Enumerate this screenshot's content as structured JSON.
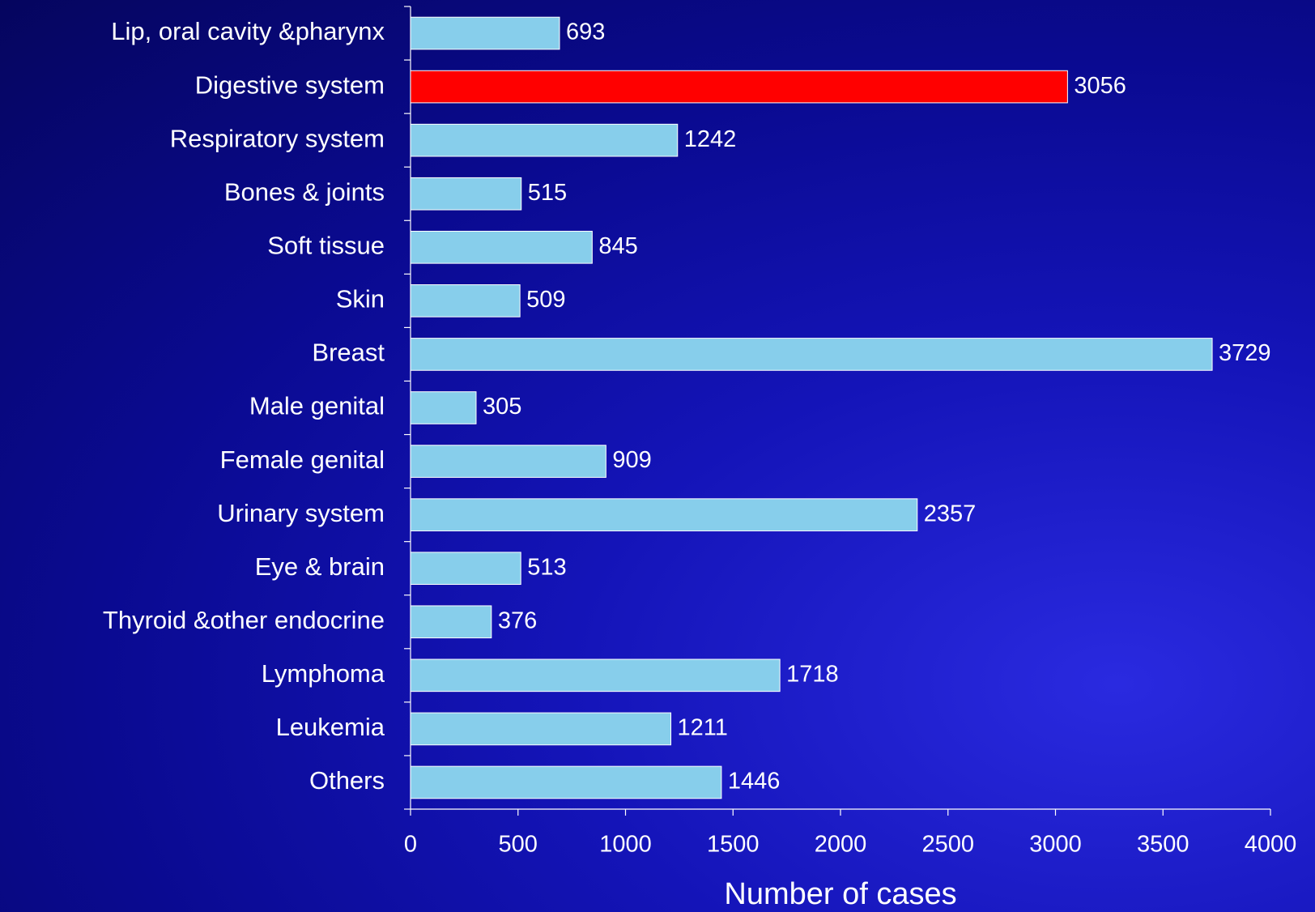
{
  "chart_data": {
    "type": "barh",
    "categories": [
      "Lip, oral cavity &pharynx",
      "Digestive system",
      "Respiratory system",
      "Bones & joints",
      "Soft tissue",
      "Skin",
      "Breast",
      "Male genital",
      "Female genital",
      "Urinary system",
      "Eye & brain",
      "Thyroid &other endocrine",
      "Lymphoma",
      "Leukemia",
      "Others"
    ],
    "values": [
      693,
      3056,
      1242,
      515,
      845,
      509,
      3729,
      305,
      909,
      2357,
      513,
      376,
      1718,
      1211,
      1446
    ],
    "colors": [
      "#87ceeb",
      "#ff0000",
      "#87ceeb",
      "#87ceeb",
      "#87ceeb",
      "#87ceeb",
      "#87ceeb",
      "#87ceeb",
      "#87ceeb",
      "#87ceeb",
      "#87ceeb",
      "#87ceeb",
      "#87ceeb",
      "#87ceeb",
      "#87ceeb"
    ],
    "xlabel": "Number of cases",
    "xlim": [
      0,
      4000
    ],
    "xticks": [
      0,
      500,
      1000,
      1500,
      2000,
      2500,
      3000,
      3500,
      4000
    ],
    "grid": false
  }
}
